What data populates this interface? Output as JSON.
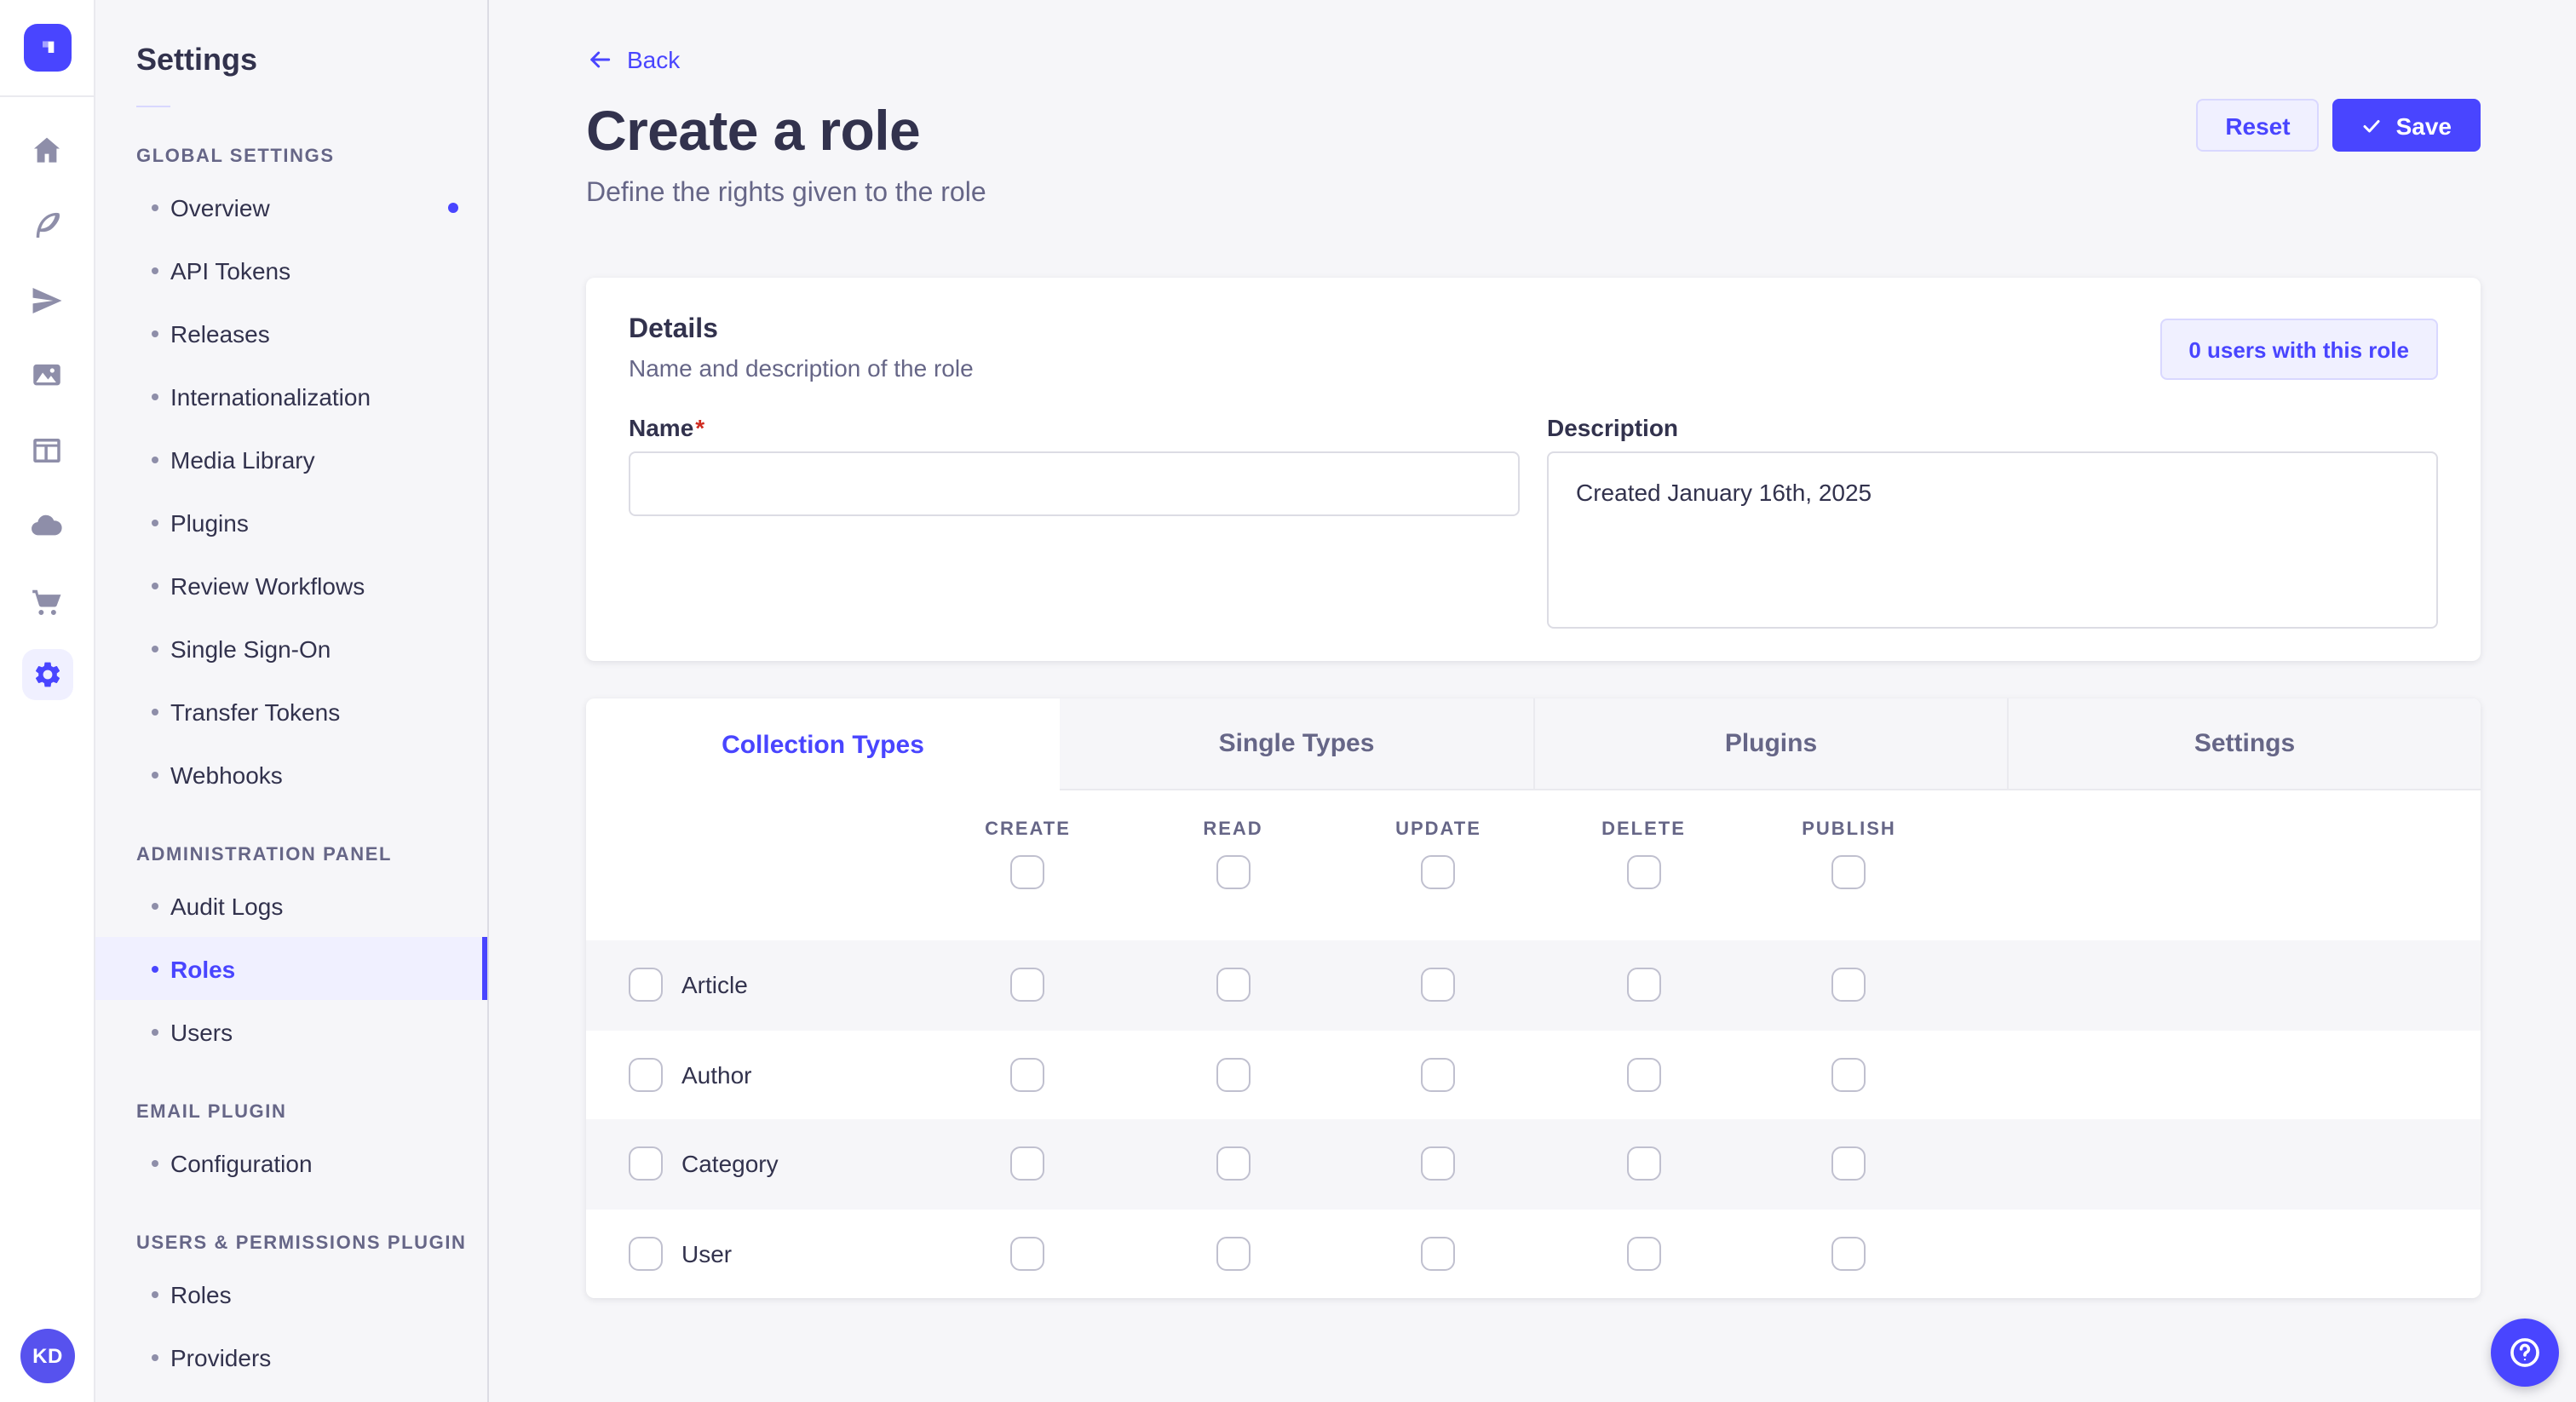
{
  "rail": {
    "brand_icon": "strapi-logo",
    "icons": [
      "home-icon",
      "content-builder-icon",
      "send-icon",
      "media-library-icon",
      "layout-icon",
      "cloud-icon",
      "marketplace-cart-icon",
      "settings-gear-icon"
    ],
    "active_icon": "settings-gear-icon",
    "avatar_initials": "KD"
  },
  "sidebar": {
    "title": "Settings",
    "sections": [
      {
        "label": "GLOBAL SETTINGS",
        "items": [
          {
            "label": "Overview",
            "notification": true
          },
          {
            "label": "API Tokens"
          },
          {
            "label": "Releases"
          },
          {
            "label": "Internationalization"
          },
          {
            "label": "Media Library"
          },
          {
            "label": "Plugins"
          },
          {
            "label": "Review Workflows"
          },
          {
            "label": "Single Sign-On"
          },
          {
            "label": "Transfer Tokens"
          },
          {
            "label": "Webhooks"
          }
        ]
      },
      {
        "label": "ADMINISTRATION PANEL",
        "items": [
          {
            "label": "Audit Logs"
          },
          {
            "label": "Roles",
            "selected": true
          },
          {
            "label": "Users"
          }
        ]
      },
      {
        "label": "EMAIL PLUGIN",
        "items": [
          {
            "label": "Configuration"
          }
        ]
      },
      {
        "label": "USERS & PERMISSIONS PLUGIN",
        "items": [
          {
            "label": "Roles"
          },
          {
            "label": "Providers"
          }
        ]
      }
    ]
  },
  "header": {
    "back_label": "Back",
    "title": "Create a role",
    "subtitle": "Define the rights given to the role",
    "reset_label": "Reset",
    "save_label": "Save"
  },
  "details": {
    "heading": "Details",
    "subheading": "Name and description of the role",
    "users_button_label": "0 users with this role",
    "name_label": "Name",
    "name_required_mark": "*",
    "name_value": "",
    "description_label": "Description",
    "description_value": "Created January 16th, 2025"
  },
  "permissions": {
    "tabs": [
      {
        "label": "Collection Types",
        "active": true
      },
      {
        "label": "Single Types",
        "active": false
      },
      {
        "label": "Plugins",
        "active": false
      },
      {
        "label": "Settings",
        "active": false
      }
    ],
    "columns": [
      "CREATE",
      "READ",
      "UPDATE",
      "DELETE",
      "PUBLISH"
    ],
    "rows": [
      {
        "label": "Article"
      },
      {
        "label": "Author"
      },
      {
        "label": "Category"
      },
      {
        "label": "User"
      }
    ],
    "all_checkboxes_checked": false
  },
  "fab": {
    "icon": "question-mark-icon"
  },
  "colors": {
    "primary": "#4945ff",
    "primary_light": "#f0f0ff",
    "primary_border": "#d9d8ff",
    "page_bg": "#f6f6f9",
    "card_bg": "#ffffff",
    "border": "#eaeaef",
    "text_dark": "#32324d",
    "text_muted": "#666687",
    "required_red": "#d02b20"
  }
}
